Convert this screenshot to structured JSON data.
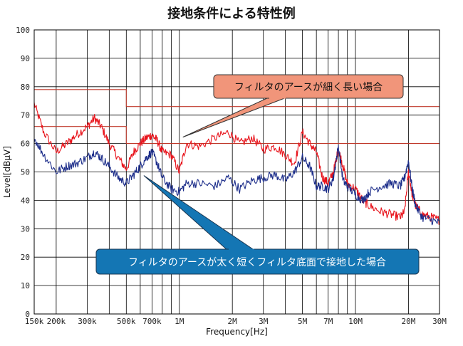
{
  "chart_data": {
    "type": "line",
    "title": "接地条件による特性例",
    "xlabel": "Frequency[Hz]",
    "ylabel": "Level[dBμV]",
    "x_scale": "log",
    "xlim": [
      150000,
      30000000
    ],
    "ylim": [
      0,
      100
    ],
    "grid": true,
    "x_ticks": [
      {
        "value": 150000,
        "label": "150k"
      },
      {
        "value": 200000,
        "label": "200k"
      },
      {
        "value": 300000,
        "label": "300k"
      },
      {
        "value": 500000,
        "label": "500k"
      },
      {
        "value": 700000,
        "label": "700k"
      },
      {
        "value": 1000000,
        "label": "1M"
      },
      {
        "value": 2000000,
        "label": "2M"
      },
      {
        "value": 3000000,
        "label": "3M"
      },
      {
        "value": 5000000,
        "label": "5M"
      },
      {
        "value": 7000000,
        "label": "7M"
      },
      {
        "value": 10000000,
        "label": "10M"
      },
      {
        "value": 20000000,
        "label": "20M"
      },
      {
        "value": 30000000,
        "label": "30M"
      }
    ],
    "y_ticks": [
      0,
      10,
      20,
      30,
      40,
      50,
      60,
      70,
      80,
      90,
      100
    ],
    "limit_lines": [
      {
        "x": [
          150000,
          500000,
          500000,
          30000000
        ],
        "y": [
          79,
          79,
          73,
          73
        ],
        "color": "#c0392b"
      },
      {
        "x": [
          150000,
          500000,
          500000,
          30000000
        ],
        "y": [
          66,
          66,
          60,
          60
        ],
        "color": "#c0392b"
      }
    ],
    "series": [
      {
        "color": "#e8141c",
        "x": [
          150000,
          170000,
          200000,
          230000,
          260000,
          300000,
          330000,
          360000,
          400000,
          450000,
          500000,
          550000,
          600000,
          650000,
          700000,
          750000,
          800000,
          900000,
          1000000,
          1100000,
          1300000,
          1600000,
          1900000,
          2200000,
          2600000,
          3000000,
          3500000,
          4000000,
          4500000,
          5000000,
          5500000,
          6000000,
          6500000,
          7000000,
          7500000,
          8000000,
          8500000,
          9000000,
          10000000,
          11000000,
          12000000,
          14000000,
          16000000,
          18000000,
          19000000,
          20000000,
          21000000,
          22000000,
          24000000,
          27000000,
          30000000
        ],
        "values": [
          74,
          64,
          57,
          60,
          63,
          66,
          69,
          66,
          60,
          55,
          51,
          57,
          60,
          62,
          63,
          61,
          57,
          56,
          50,
          60,
          59,
          62,
          64,
          60,
          62,
          58,
          59,
          56,
          53,
          64,
          60,
          57,
          48,
          46,
          50,
          58,
          52,
          46,
          44,
          40,
          38,
          36,
          35,
          34,
          36,
          50,
          42,
          38,
          35,
          34,
          33
        ]
      },
      {
        "color": "#1c2d8a",
        "x": [
          150000,
          170000,
          200000,
          230000,
          260000,
          300000,
          330000,
          360000,
          400000,
          450000,
          500000,
          550000,
          600000,
          650000,
          700000,
          750000,
          800000,
          900000,
          1000000,
          1100000,
          1300000,
          1600000,
          1900000,
          2200000,
          2600000,
          3000000,
          3500000,
          4000000,
          4500000,
          5000000,
          5500000,
          6000000,
          6500000,
          7000000,
          7500000,
          8000000,
          8500000,
          9000000,
          10000000,
          11000000,
          12000000,
          14000000,
          16000000,
          18000000,
          19000000,
          20000000,
          21000000,
          22000000,
          24000000,
          27000000,
          30000000
        ],
        "values": [
          62,
          56,
          50,
          52,
          53,
          55,
          57,
          55,
          52,
          48,
          46,
          49,
          52,
          55,
          57,
          53,
          48,
          44,
          43,
          46,
          46,
          45,
          48,
          44,
          47,
          48,
          49,
          47,
          50,
          55,
          52,
          45,
          45,
          44,
          48,
          59,
          47,
          45,
          42,
          40,
          43,
          45,
          46,
          45,
          48,
          54,
          44,
          38,
          34,
          33,
          32
        ]
      }
    ],
    "annotations": [
      {
        "text": "フィルタのアースが細く長い場合",
        "bg": "#f1957a",
        "target": [
          1000000,
          62
        ]
      },
      {
        "text": "フィルタのアースが太く短くフィルタ底面で接地した場合",
        "bg": "#1476b4",
        "target": [
          600000,
          48
        ]
      }
    ]
  }
}
